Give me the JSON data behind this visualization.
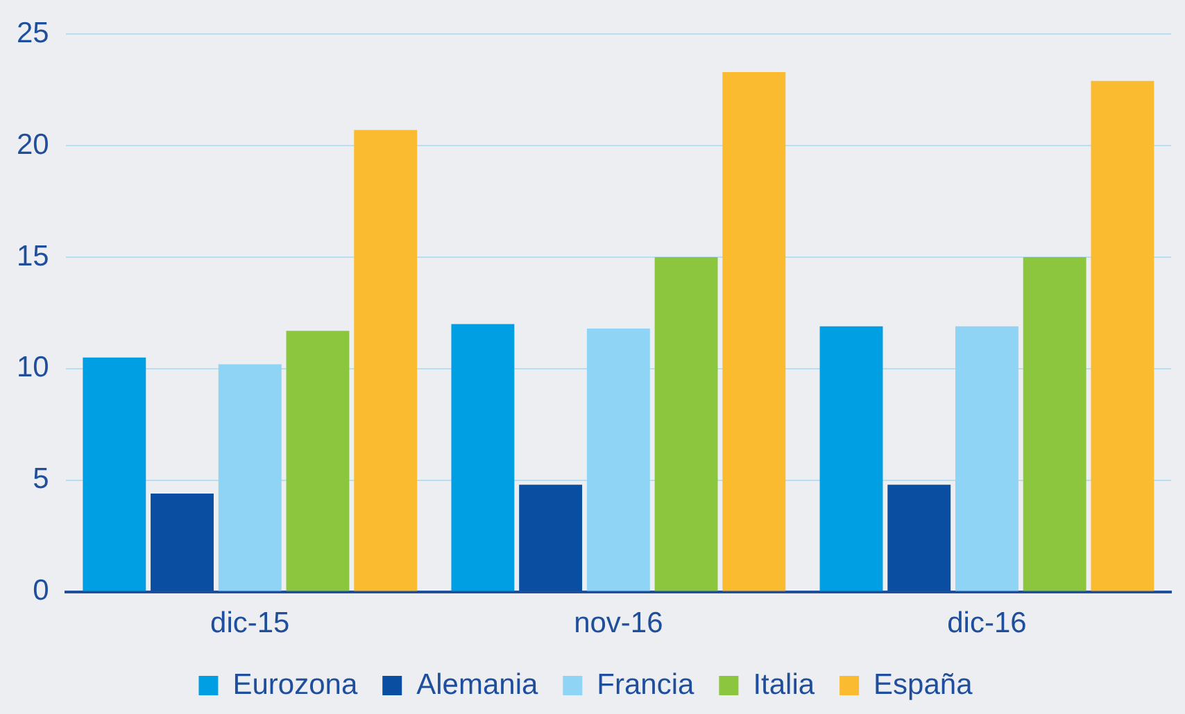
{
  "chart_data": {
    "type": "bar",
    "categories": [
      "dic-15",
      "nov-16",
      "dic-16"
    ],
    "series": [
      {
        "name": "Eurozona",
        "color": "#009fe3",
        "values": [
          10.5,
          12.0,
          11.9
        ]
      },
      {
        "name": "Alemania",
        "color": "#0a4ea2",
        "values": [
          4.4,
          4.8,
          4.8
        ]
      },
      {
        "name": "Francia",
        "color": "#8fd3f5",
        "values": [
          10.2,
          11.8,
          11.9
        ]
      },
      {
        "name": "Italia",
        "color": "#8cc63f",
        "values": [
          11.7,
          15.0,
          15.0
        ]
      },
      {
        "name": "España",
        "color": "#fbbb30",
        "values": [
          20.7,
          23.3,
          22.9
        ]
      }
    ],
    "ylim": [
      0,
      25
    ],
    "yticks": [
      0,
      5,
      10,
      15,
      20,
      25
    ],
    "grid": "y",
    "legend": "bottom"
  }
}
